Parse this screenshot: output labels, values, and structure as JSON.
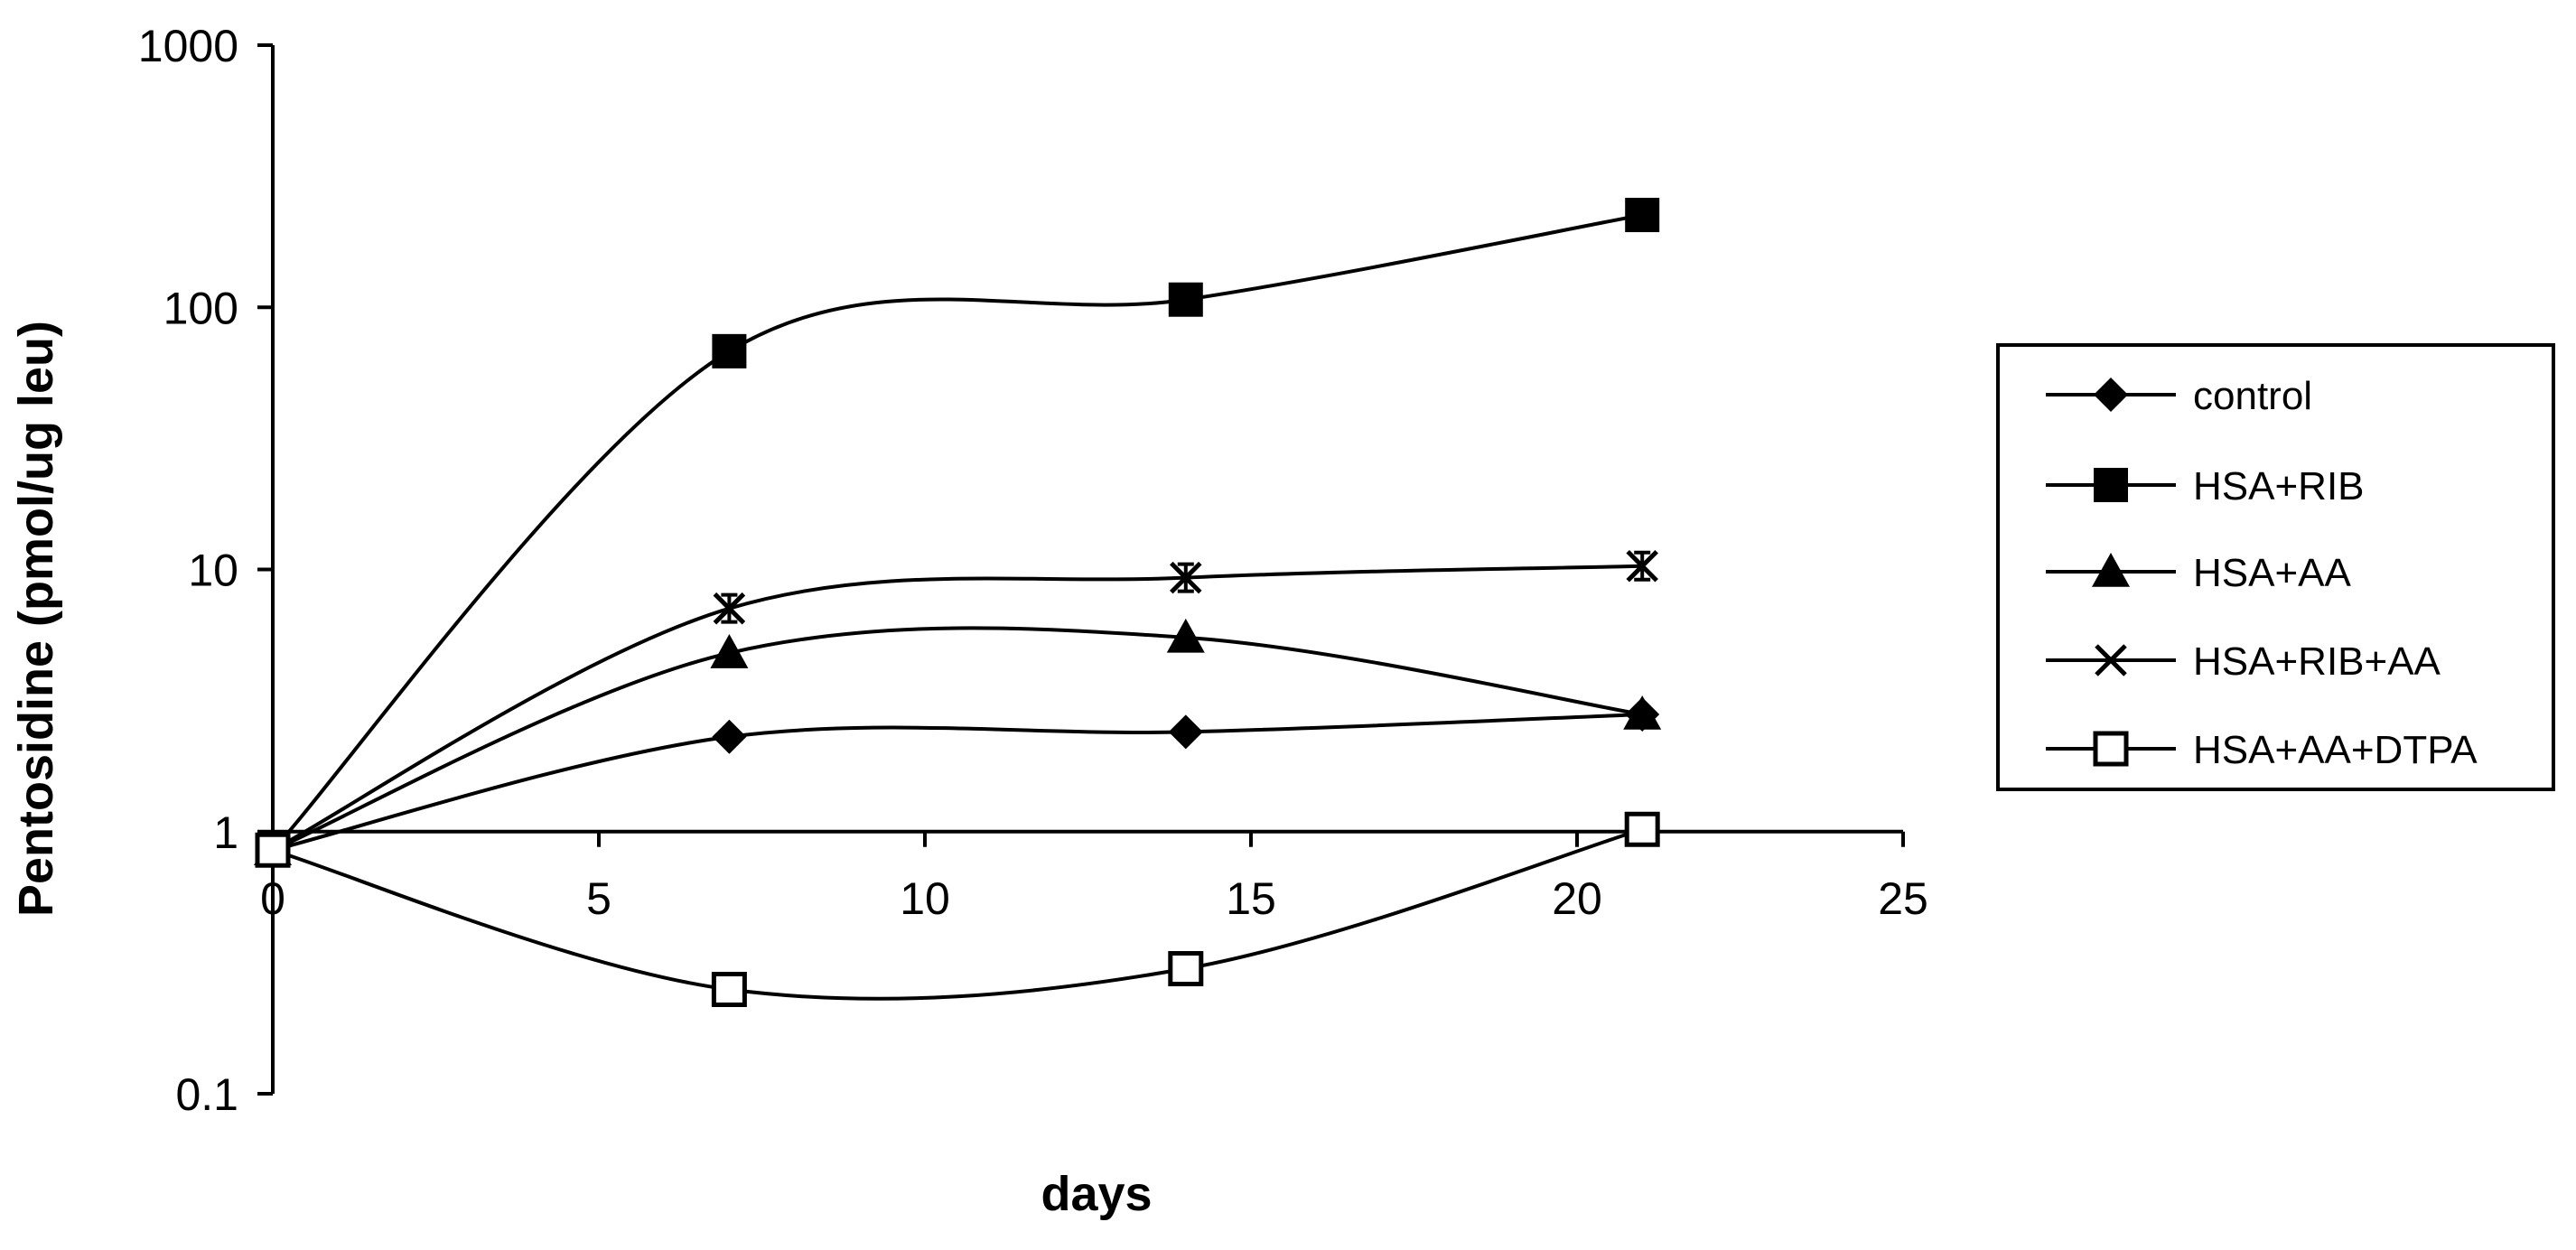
{
  "chart_data": {
    "type": "line",
    "title": "",
    "xlabel": "days",
    "ylabel": "Pentosidine (pmol/ug leu)",
    "xlim": [
      0,
      25
    ],
    "ylim": [
      0.1,
      1000
    ],
    "yscale": "log",
    "x_ticks": [
      "0",
      "5",
      "10",
      "15",
      "20",
      "25"
    ],
    "y_ticks": [
      "0.1",
      "1",
      "10",
      "100",
      "1000"
    ],
    "legend_position": "right",
    "grid": false,
    "x": [
      0,
      7,
      14,
      21
    ],
    "series": [
      {
        "name": "control",
        "marker": "diamond",
        "values": [
          0.85,
          2.3,
          2.4,
          2.8
        ]
      },
      {
        "name": "HSA+RIB",
        "marker": "square",
        "values": [
          0.85,
          68,
          107,
          225
        ]
      },
      {
        "name": "HSA+AA",
        "marker": "triangle",
        "values": [
          0.85,
          4.8,
          5.5,
          2.8
        ]
      },
      {
        "name": "HSA+RIB+AA",
        "marker": "x",
        "values": [
          0.85,
          7.1,
          9.3,
          10.3
        ]
      },
      {
        "name": "HSA+AA+DTPA",
        "marker": "open-square",
        "values": [
          0.85,
          0.25,
          0.3,
          1.02
        ]
      }
    ]
  }
}
